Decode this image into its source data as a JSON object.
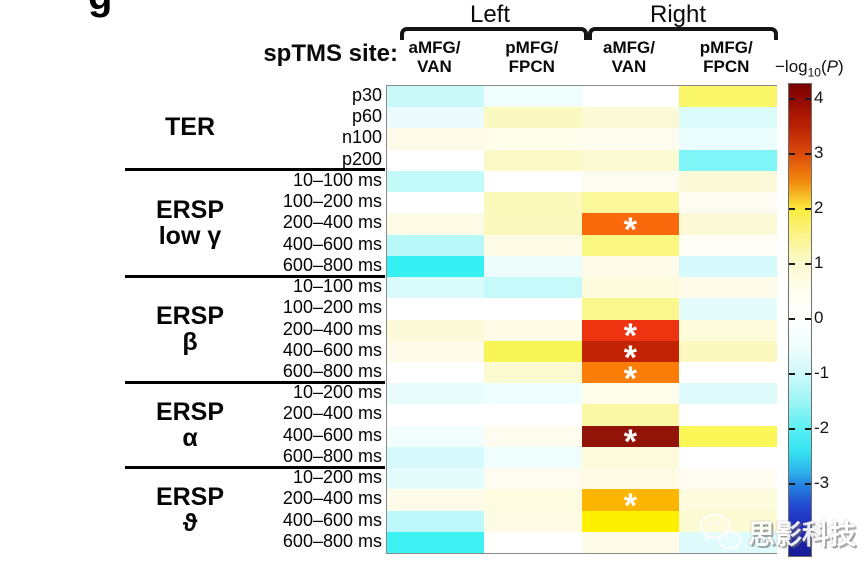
{
  "figure": {
    "panel_label": "g",
    "sptms_site_label": "spTMS site:",
    "hemispheres": [
      "Left",
      "Right"
    ],
    "significance_marker": "*"
  },
  "watermark": {
    "text": "思影科技",
    "icon": "wechat-logo"
  },
  "chart_data": {
    "type": "heatmap",
    "title": "",
    "value_unit": "-log10(P)",
    "legend_position": "right-colorbar",
    "columns": [
      {
        "hemisphere": "Left",
        "site": "aMFG/VAN",
        "header_lines": [
          "aMFG/",
          "VAN"
        ]
      },
      {
        "hemisphere": "Left",
        "site": "pMFG/FPCN",
        "header_lines": [
          "pMFG/",
          "FPCN"
        ]
      },
      {
        "hemisphere": "Right",
        "site": "aMFG/VAN",
        "header_lines": [
          "aMFG/",
          "VAN"
        ]
      },
      {
        "hemisphere": "Right",
        "site": "pMFG/FPCN",
        "header_lines": [
          "pMFG/",
          "FPCN"
        ]
      }
    ],
    "row_groups": [
      {
        "label_lines": [
          "TER"
        ],
        "n_rows": 4
      },
      {
        "label_lines": [
          "ERSP",
          "low γ"
        ],
        "n_rows": 5
      },
      {
        "label_lines": [
          "ERSP",
          "β"
        ],
        "n_rows": 5
      },
      {
        "label_lines": [
          "ERSP",
          "α"
        ],
        "n_rows": 4
      },
      {
        "label_lines": [
          "ERSP",
          "ϑ"
        ],
        "n_rows": 4
      }
    ],
    "rows": [
      {
        "group": "TER",
        "label": "p30",
        "colors": [
          "#C9FAF9",
          "#F0FDFD",
          "#FFFFFF",
          "#F9F667"
        ],
        "values_est": [
          -0.8,
          -0.2,
          0.0,
          1.9
        ],
        "sig": [
          false,
          false,
          false,
          false
        ]
      },
      {
        "group": "TER",
        "label": "p60",
        "colors": [
          "#ECFCFC",
          "#FBF9C2",
          "#FCFAD6",
          "#DCFBFB"
        ],
        "values_est": [
          -0.3,
          1.1,
          0.8,
          -0.6
        ],
        "sig": [
          false,
          false,
          false,
          false
        ]
      },
      {
        "group": "TER",
        "label": "n100",
        "colors": [
          "#FDFAE8",
          "#FEFCEA",
          "#FEFCEE",
          "#ECFDFD"
        ],
        "values_est": [
          0.5,
          0.4,
          0.35,
          -0.25
        ],
        "sig": [
          false,
          false,
          false,
          false
        ]
      },
      {
        "group": "TER",
        "label": "p200",
        "colors": [
          "#FFFFFF",
          "#FBF9C6",
          "#FCFAD2",
          "#80F5F8"
        ],
        "values_est": [
          0.0,
          1.05,
          0.85,
          -1.75
        ],
        "sig": [
          false,
          false,
          false,
          false
        ]
      },
      {
        "group": "ERSP low γ",
        "label": "10–100 ms",
        "colors": [
          "#C4F9FA",
          "#FFFFFF",
          "#FEFCF0",
          "#FCFAD8"
        ],
        "values_est": [
          -0.85,
          0.0,
          0.3,
          0.8
        ],
        "sig": [
          false,
          false,
          false,
          false
        ]
      },
      {
        "group": "ERSP low γ",
        "label": "100–200 ms",
        "colors": [
          "#FFFFFF",
          "#FBF9BC",
          "#FAF89A",
          "#FEFCF2"
        ],
        "values_est": [
          0.0,
          1.15,
          1.45,
          0.3
        ],
        "sig": [
          false,
          false,
          false,
          false
        ]
      },
      {
        "group": "ERSP low γ",
        "label": "200–400 ms",
        "colors": [
          "#FDFBE6",
          "#FBF9BE",
          "#FA6A0C",
          "#FCFAD6"
        ],
        "values_est": [
          0.5,
          1.1,
          2.9,
          0.8
        ],
        "sig": [
          false,
          false,
          true,
          false
        ]
      },
      {
        "group": "ERSP low γ",
        "label": "400–600 ms",
        "colors": [
          "#B8F8F9",
          "#FEFCE6",
          "#FAF880",
          "#FEFEF6"
        ],
        "values_est": [
          -1.0,
          0.5,
          1.6,
          0.15
        ],
        "sig": [
          false,
          false,
          false,
          false
        ]
      },
      {
        "group": "ERSP low γ",
        "label": "600–800 ms",
        "colors": [
          "#35F1F3",
          "#EDFDFC",
          "#FEFCE9",
          "#D6FAFB"
        ],
        "values_est": [
          -2.2,
          -0.25,
          0.4,
          -0.6
        ],
        "sig": [
          false,
          false,
          false,
          false
        ]
      },
      {
        "group": "ERSP β",
        "label": "10–100 ms",
        "colors": [
          "#D9FBFB",
          "#C6F9FA",
          "#FDFBDE",
          "#FEFCE8"
        ],
        "values_est": [
          -0.55,
          -0.85,
          0.7,
          0.45
        ],
        "sig": [
          false,
          false,
          false,
          false
        ]
      },
      {
        "group": "ERSP β",
        "label": "100–200 ms",
        "colors": [
          "#FFFFFF",
          "#FFFFFF",
          "#FAF88C",
          "#E4FCFC"
        ],
        "values_est": [
          0.0,
          0.0,
          1.55,
          -0.4
        ],
        "sig": [
          false,
          false,
          false,
          false
        ]
      },
      {
        "group": "ERSP β",
        "label": "200–400 ms",
        "colors": [
          "#FCFAD8",
          "#FEFCE6",
          "#EE3311",
          "#FDFBDC"
        ],
        "values_est": [
          0.8,
          0.5,
          3.4,
          0.7
        ],
        "sig": [
          false,
          false,
          true,
          false
        ]
      },
      {
        "group": "ERSP β",
        "label": "400–600 ms",
        "colors": [
          "#FEFCE9",
          "#F8F556",
          "#C32305",
          "#FBF9C0"
        ],
        "values_est": [
          0.4,
          2.0,
          3.9,
          1.1
        ],
        "sig": [
          false,
          false,
          true,
          false
        ]
      },
      {
        "group": "ERSP β",
        "label": "600–800 ms",
        "colors": [
          "#FFFFFF",
          "#FCFAD0",
          "#F97D07",
          "#FFFFFF"
        ],
        "values_est": [
          0.0,
          0.9,
          2.75,
          0.0
        ],
        "sig": [
          false,
          false,
          true,
          false
        ]
      },
      {
        "group": "ERSP α",
        "label": "10–200 ms",
        "colors": [
          "#E9FCFC",
          "#EEFDFD",
          "#FEFCEA",
          "#DFFBFC"
        ],
        "values_est": [
          -0.3,
          -0.25,
          0.4,
          -0.5
        ],
        "sig": [
          false,
          false,
          false,
          false
        ]
      },
      {
        "group": "ERSP α",
        "label": "200–400 ms",
        "colors": [
          "#FFFFFF",
          "#FFFFFF",
          "#FAF8A4",
          "#FFFFFF"
        ],
        "values_est": [
          0.0,
          0.0,
          1.45,
          0.0
        ],
        "sig": [
          false,
          false,
          false,
          false
        ]
      },
      {
        "group": "ERSP α",
        "label": "400–600 ms",
        "colors": [
          "#F2FDFD",
          "#FEFCEE",
          "#921307",
          "#FAF756"
        ],
        "values_est": [
          -0.2,
          0.35,
          4.3,
          2.0
        ],
        "sig": [
          false,
          false,
          true,
          false
        ]
      },
      {
        "group": "ERSP α",
        "label": "600–800 ms",
        "colors": [
          "#D6FAFB",
          "#EFFDFD",
          "#FDFBDC",
          "#FFFFFF"
        ],
        "values_est": [
          -0.6,
          -0.2,
          0.7,
          0.0
        ],
        "sig": [
          false,
          false,
          false,
          false
        ]
      },
      {
        "group": "ERSP ϑ",
        "label": "10–200 ms",
        "colors": [
          "#E4FCFC",
          "#FEFCF0",
          "#FEFBE4",
          "#FEFCF0"
        ],
        "values_est": [
          -0.4,
          0.3,
          0.5,
          0.3
        ],
        "sig": [
          false,
          false,
          false,
          false
        ]
      },
      {
        "group": "ERSP ϑ",
        "label": "200–400 ms",
        "colors": [
          "#FEFBE9",
          "#FDFBE0",
          "#FCB501",
          "#FDFBDE"
        ],
        "values_est": [
          0.4,
          0.6,
          2.5,
          0.65
        ],
        "sig": [
          false,
          false,
          true,
          false
        ]
      },
      {
        "group": "ERSP ϑ",
        "label": "400–600 ms",
        "colors": [
          "#BFF8FA",
          "#FDFBE4",
          "#FDF001",
          "#FCFAD2"
        ],
        "values_est": [
          -0.95,
          0.55,
          2.1,
          0.85
        ],
        "sig": [
          false,
          false,
          false,
          false
        ]
      },
      {
        "group": "ERSP ϑ",
        "label": "600–800 ms",
        "colors": [
          "#3EF2F4",
          "#FFFFFF",
          "#FEFCE8",
          "#DFFBFB"
        ],
        "values_est": [
          -2.1,
          0.0,
          0.45,
          -0.5
        ],
        "sig": [
          false,
          false,
          false,
          false
        ]
      }
    ],
    "colorbar": {
      "label": "−log10(P)",
      "label_prefix": "−log",
      "label_sub": "10",
      "label_open": "(",
      "label_p": "P",
      "label_close": ")",
      "range": [
        -4.3,
        4.27
      ],
      "ticks": [
        {
          "value": 4,
          "label": "4"
        },
        {
          "value": 3,
          "label": "3"
        },
        {
          "value": 2,
          "label": "2"
        },
        {
          "value": 1,
          "label": "1"
        },
        {
          "value": 0,
          "label": "0"
        },
        {
          "value": -1,
          "label": "-1"
        },
        {
          "value": -2,
          "label": "-2"
        },
        {
          "value": -3,
          "label": "-3"
        }
      ],
      "gradient_stops": [
        {
          "v": 4.27,
          "c": "#790101"
        },
        {
          "v": 4.0,
          "c": "#920A02"
        },
        {
          "v": 3.5,
          "c": "#B92104"
        },
        {
          "v": 3.0,
          "c": "#DE4A0B"
        },
        {
          "v": 2.5,
          "c": "#F28A0C"
        },
        {
          "v": 2.0,
          "c": "#FAEC3E"
        },
        {
          "v": 1.5,
          "c": "#FBF48C"
        },
        {
          "v": 1.0,
          "c": "#FDFAD0"
        },
        {
          "v": 0.5,
          "c": "#FFFEF0"
        },
        {
          "v": 0.0,
          "c": "#FFFFFF"
        },
        {
          "v": -0.5,
          "c": "#F0FDFD"
        },
        {
          "v": -1.0,
          "c": "#CDF9FA"
        },
        {
          "v": -1.5,
          "c": "#9BF4F6"
        },
        {
          "v": -2.0,
          "c": "#57EFF2"
        },
        {
          "v": -2.4,
          "c": "#35E3F2"
        },
        {
          "v": -2.8,
          "c": "#2BAEEA"
        },
        {
          "v": -3.0,
          "c": "#2585E2"
        },
        {
          "v": -3.4,
          "c": "#2247CE"
        },
        {
          "v": -3.8,
          "c": "#2029BC"
        },
        {
          "v": -4.3,
          "c": "#181B94"
        }
      ]
    }
  }
}
